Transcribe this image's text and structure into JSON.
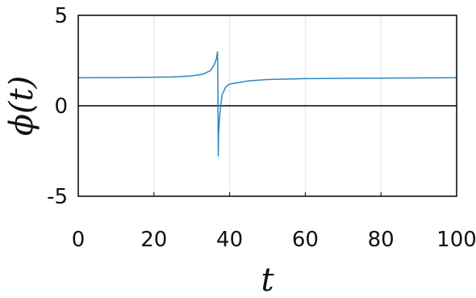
{
  "chart_data": {
    "type": "line",
    "title": "",
    "xlabel": "t",
    "ylabel": "ϕ(t)",
    "xlim": [
      0,
      100
    ],
    "ylim": [
      -5,
      5
    ],
    "grid": true,
    "x_ticks": [
      0,
      20,
      40,
      60,
      80,
      100
    ],
    "y_ticks": [
      -5,
      0,
      5
    ],
    "x_tick_labels": [
      "0",
      "20",
      "40",
      "60",
      "80",
      "100"
    ],
    "y_tick_labels": [
      "-5",
      "0",
      "5"
    ],
    "reference_line_y": 0,
    "series": [
      {
        "color": "#2e86c1",
        "x": [
          0,
          10,
          20,
          25,
          30,
          33,
          35,
          36,
          36.5,
          36.8,
          36.9,
          37,
          37.1,
          37.4,
          38,
          39,
          40,
          45,
          50,
          60,
          70,
          80,
          90,
          100
        ],
        "y": [
          1.55,
          1.56,
          1.58,
          1.6,
          1.65,
          1.75,
          1.95,
          2.3,
          2.6,
          3.0,
          1.0,
          -2.8,
          -1.5,
          -0.5,
          0.6,
          1.05,
          1.2,
          1.38,
          1.45,
          1.5,
          1.52,
          1.53,
          1.54,
          1.55
        ]
      }
    ]
  }
}
